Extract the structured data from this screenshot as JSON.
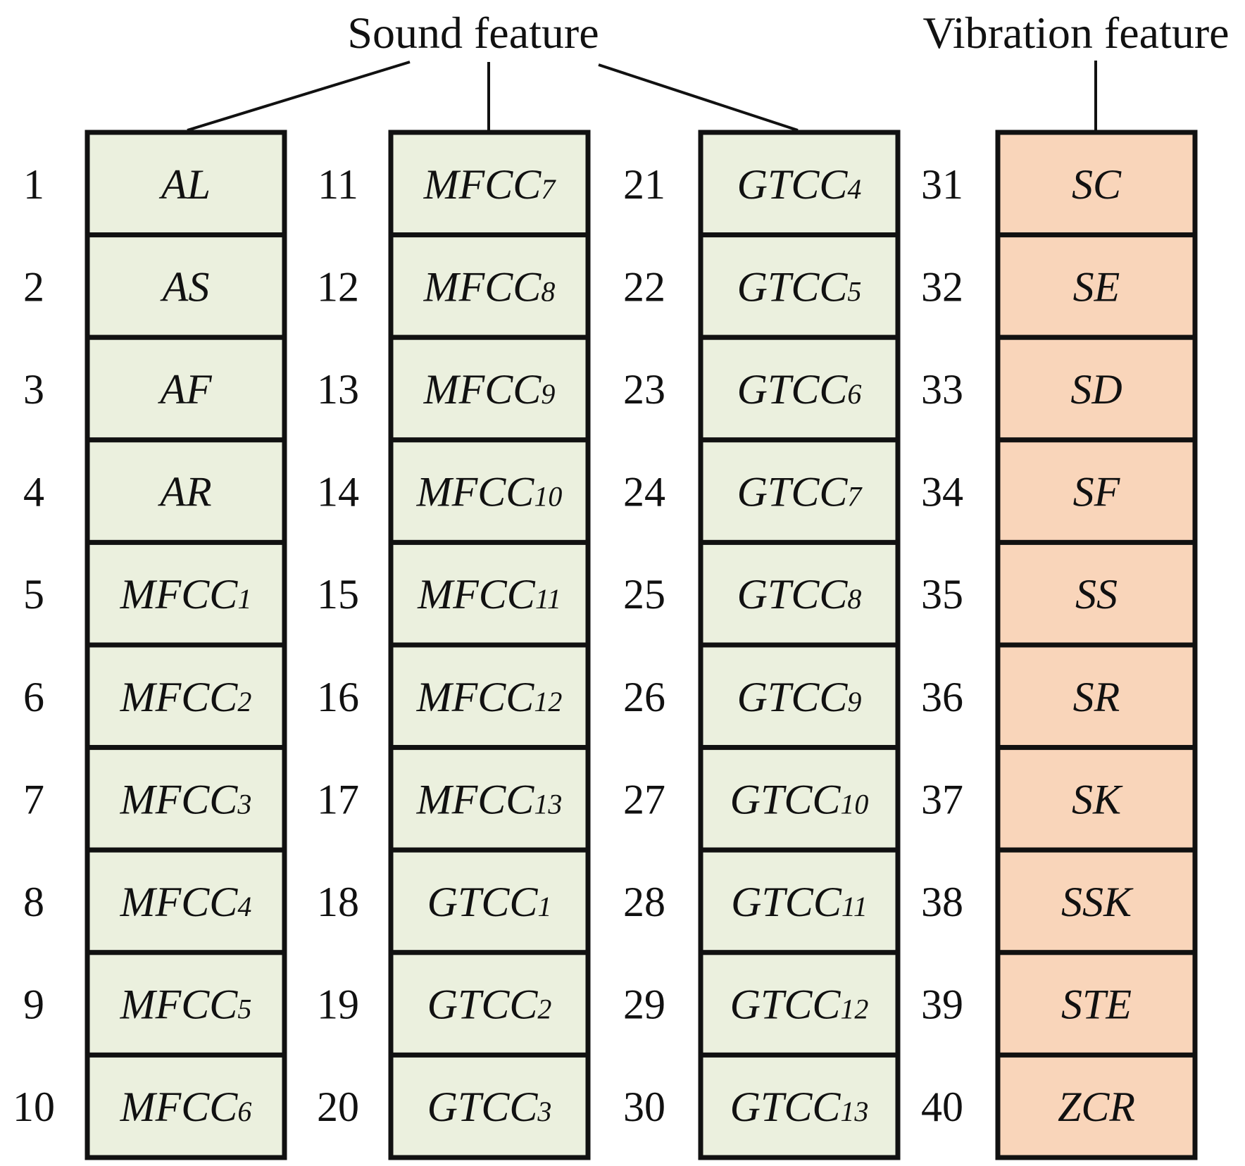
{
  "groups": [
    {
      "label": "Sound feature"
    },
    {
      "label": "Vibration feature"
    }
  ],
  "colors": {
    "sound_fill": "#EBF0DE",
    "vibration_fill": "#F9D5BA",
    "stroke": "#111111"
  },
  "columns": [
    {
      "group": "sound",
      "cells": [
        {
          "index": "1",
          "base": "AL",
          "sub": ""
        },
        {
          "index": "2",
          "base": "AS",
          "sub": ""
        },
        {
          "index": "3",
          "base": "AF",
          "sub": ""
        },
        {
          "index": "4",
          "base": "AR",
          "sub": ""
        },
        {
          "index": "5",
          "base": "MFCC",
          "sub": "1"
        },
        {
          "index": "6",
          "base": "MFCC",
          "sub": "2"
        },
        {
          "index": "7",
          "base": "MFCC",
          "sub": "3"
        },
        {
          "index": "8",
          "base": "MFCC",
          "sub": "4"
        },
        {
          "index": "9",
          "base": "MFCC",
          "sub": "5"
        },
        {
          "index": "10",
          "base": "MFCC",
          "sub": "6"
        }
      ]
    },
    {
      "group": "sound",
      "cells": [
        {
          "index": "11",
          "base": "MFCC",
          "sub": "7"
        },
        {
          "index": "12",
          "base": "MFCC",
          "sub": "8"
        },
        {
          "index": "13",
          "base": "MFCC",
          "sub": "9"
        },
        {
          "index": "14",
          "base": "MFCC",
          "sub": "10"
        },
        {
          "index": "15",
          "base": "MFCC",
          "sub": "11"
        },
        {
          "index": "16",
          "base": "MFCC",
          "sub": "12"
        },
        {
          "index": "17",
          "base": "MFCC",
          "sub": "13"
        },
        {
          "index": "18",
          "base": "GTCC",
          "sub": "1"
        },
        {
          "index": "19",
          "base": "GTCC",
          "sub": "2"
        },
        {
          "index": "20",
          "base": "GTCC",
          "sub": "3"
        }
      ]
    },
    {
      "group": "sound",
      "cells": [
        {
          "index": "21",
          "base": "GTCC",
          "sub": "4"
        },
        {
          "index": "22",
          "base": "GTCC",
          "sub": "5"
        },
        {
          "index": "23",
          "base": "GTCC",
          "sub": "6"
        },
        {
          "index": "24",
          "base": "GTCC",
          "sub": "7"
        },
        {
          "index": "25",
          "base": "GTCC",
          "sub": "8"
        },
        {
          "index": "26",
          "base": "GTCC",
          "sub": "9"
        },
        {
          "index": "27",
          "base": "GTCC",
          "sub": "10"
        },
        {
          "index": "28",
          "base": "GTCC",
          "sub": "11"
        },
        {
          "index": "29",
          "base": "GTCC",
          "sub": "12"
        },
        {
          "index": "30",
          "base": "GTCC",
          "sub": "13"
        }
      ]
    },
    {
      "group": "vibration",
      "cells": [
        {
          "index": "31",
          "base": "SC",
          "sub": ""
        },
        {
          "index": "32",
          "base": "SE",
          "sub": ""
        },
        {
          "index": "33",
          "base": "SD",
          "sub": ""
        },
        {
          "index": "34",
          "base": "SF",
          "sub": ""
        },
        {
          "index": "35",
          "base": "SS",
          "sub": ""
        },
        {
          "index": "36",
          "base": "SR",
          "sub": ""
        },
        {
          "index": "37",
          "base": "SK",
          "sub": ""
        },
        {
          "index": "38",
          "base": "SSK",
          "sub": ""
        },
        {
          "index": "39",
          "base": "STE",
          "sub": ""
        },
        {
          "index": "40",
          "base": "ZCR",
          "sub": ""
        }
      ]
    }
  ]
}
